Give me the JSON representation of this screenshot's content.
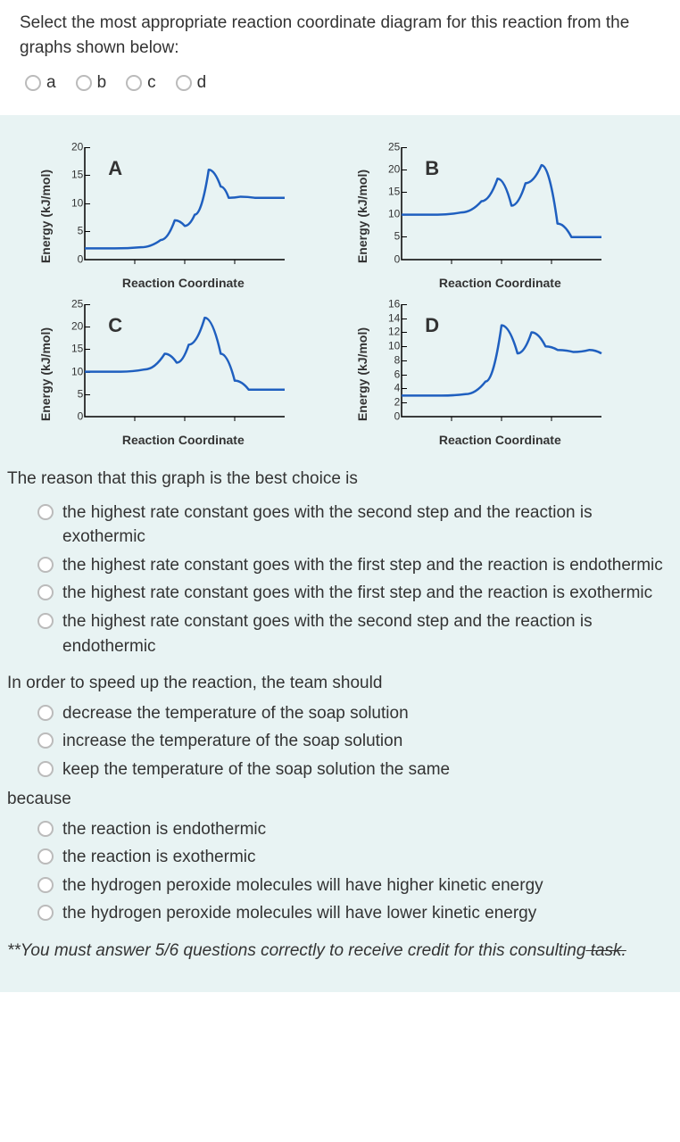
{
  "q1": {
    "text": "Select the most appropriate reaction coordinate diagram for this reaction from the graphs shown below:",
    "options": [
      "a",
      "b",
      "c",
      "d"
    ]
  },
  "charts": {
    "ylabel": "Energy (kJ/mol)",
    "xlabel": "Reaction Coordinate",
    "line_color": "#1f5fbf",
    "line_width": 2.5,
    "axis_color": "#000000",
    "bg_color": "#e8f3f3",
    "tick_fontsize": 12,
    "label_fontsize": 14,
    "letter_fontsize": 22,
    "panels": {
      "A": {
        "ymax": 20,
        "ytick_step": 5,
        "points": [
          [
            0,
            2
          ],
          [
            0.15,
            2
          ],
          [
            0.28,
            2.2
          ],
          [
            0.38,
            3.5
          ],
          [
            0.45,
            7
          ],
          [
            0.5,
            6
          ],
          [
            0.55,
            8
          ],
          [
            0.62,
            16
          ],
          [
            0.68,
            13
          ],
          [
            0.72,
            11
          ],
          [
            0.78,
            11.2
          ],
          [
            0.85,
            11
          ],
          [
            1,
            11
          ]
        ]
      },
      "B": {
        "ymax": 25,
        "ytick_step": 5,
        "points": [
          [
            0,
            10
          ],
          [
            0.18,
            10
          ],
          [
            0.3,
            10.5
          ],
          [
            0.4,
            13
          ],
          [
            0.48,
            18
          ],
          [
            0.55,
            12
          ],
          [
            0.62,
            17
          ],
          [
            0.7,
            21
          ],
          [
            0.78,
            8
          ],
          [
            0.85,
            5
          ],
          [
            0.92,
            5
          ],
          [
            1,
            5
          ]
        ]
      },
      "C": {
        "ymax": 25,
        "ytick_step": 5,
        "points": [
          [
            0,
            10
          ],
          [
            0.18,
            10
          ],
          [
            0.3,
            10.5
          ],
          [
            0.4,
            14
          ],
          [
            0.46,
            12
          ],
          [
            0.52,
            16
          ],
          [
            0.6,
            22
          ],
          [
            0.68,
            14
          ],
          [
            0.75,
            8
          ],
          [
            0.82,
            6
          ],
          [
            0.9,
            6
          ],
          [
            1,
            6
          ]
        ]
      },
      "D": {
        "ymax": 16,
        "ytick_step": 2,
        "points": [
          [
            0,
            3
          ],
          [
            0.2,
            3
          ],
          [
            0.32,
            3.2
          ],
          [
            0.42,
            5
          ],
          [
            0.5,
            13
          ],
          [
            0.58,
            9
          ],
          [
            0.65,
            12
          ],
          [
            0.72,
            10
          ],
          [
            0.78,
            9.5
          ],
          [
            0.86,
            9.2
          ],
          [
            0.94,
            9.5
          ],
          [
            1,
            9
          ]
        ]
      }
    }
  },
  "q2": {
    "stem": "The reason that this graph is the best choice is",
    "options": [
      "the highest rate constant goes with the second step and the reaction is exothermic",
      "the highest rate constant goes with the first step and the reaction is endothermic",
      "the highest rate constant goes with the first step and the reaction is exothermic",
      "the highest rate constant goes with the second step and the reaction is endothermic"
    ]
  },
  "q3": {
    "stem": "In order to speed up the reaction, the team should",
    "options": [
      "decrease the temperature of the soap solution",
      "increase the temperature of the soap solution",
      "keep the temperature of the soap solution the same"
    ],
    "because": "because",
    "reasons": [
      "the reaction is endothermic",
      "the reaction is exothermic",
      "the hydrogen peroxide molecules will have higher kinetic energy",
      "the hydrogen peroxide molecules will have lower kinetic energy"
    ]
  },
  "footnote": {
    "main": "**You must answer 5/6 questions correctly to receive credit for this consulting",
    "strike": " task."
  }
}
